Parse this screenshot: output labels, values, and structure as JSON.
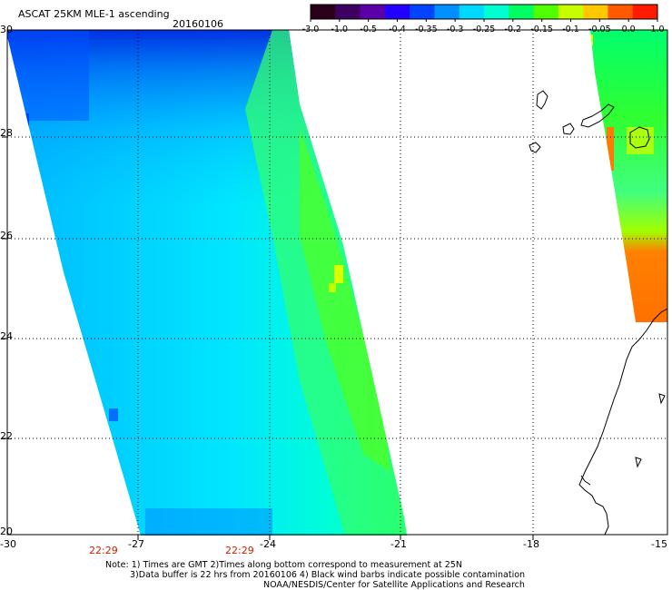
{
  "header": {
    "title": "ASCAT 25KM MLE-1 ascending",
    "date": "20160106"
  },
  "colorbar": {
    "labels": [
      "-3.0",
      "-1.0",
      "-0.5",
      "-0.4",
      "-0.35",
      "-0.3",
      "-0.25",
      "-0.2",
      "-0.15",
      "-0.1",
      "-0.05",
      "0.0",
      "1.0"
    ],
    "colors": [
      "#2a0018",
      "#3d0060",
      "#5a00a8",
      "#2200ff",
      "#0044ff",
      "#0090ff",
      "#00d8ff",
      "#00ffd0",
      "#00ff60",
      "#50ff00",
      "#c8ff00",
      "#ffc800",
      "#ff5a00",
      "#ff1a00"
    ]
  },
  "axes": {
    "x_labels": [
      "-30",
      "-27",
      "-24",
      "-21",
      "-18",
      "-15"
    ],
    "y_labels": [
      "30",
      "28",
      "26",
      "24",
      "22",
      "20"
    ],
    "x_range": [
      -30,
      -15
    ],
    "y_range": [
      20,
      30
    ]
  },
  "times": [
    "22:29",
    "22:29"
  ],
  "notes": {
    "line1": "Note: 1) Times are GMT 2)Times along bottom correspond to measurement at 25N",
    "line2": "3)Data buffer is 22 hrs from 20160106 4) Black wind barbs indicate possible contamination",
    "line3": "NOAA/NESDIS/Center for Satellite Applications and Research"
  }
}
